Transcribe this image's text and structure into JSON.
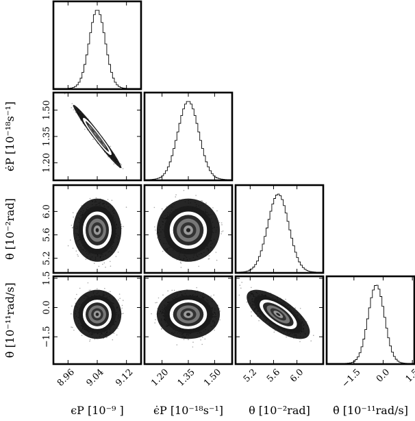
{
  "chart_data": {
    "type": "corner",
    "title": "",
    "parameters": [
      {
        "key": "eps",
        "label": "ϵP [10⁻⁹ ]",
        "range": [
          8.92,
          9.16
        ],
        "ticks": [
          8.96,
          9.04,
          9.12
        ],
        "tick_labels": [
          "8.96",
          "9.04",
          "9.12"
        ],
        "mean": 9.04,
        "sd": 0.022
      },
      {
        "key": "epsdot",
        "label": "ϵ̇P [10⁻¹⁸s⁻¹]",
        "range": [
          1.1,
          1.6
        ],
        "ticks": [
          1.2,
          1.35,
          1.5
        ],
        "tick_labels": [
          "1.20",
          "1.35",
          "1.50"
        ],
        "mean": 1.35,
        "sd": 0.06
      },
      {
        "key": "theta",
        "label": "θ [10⁻²rad]",
        "range": [
          4.95,
          6.45
        ],
        "ticks": [
          5.2,
          5.6,
          6.0
        ],
        "tick_labels": [
          "5.2",
          "5.6",
          "6.0"
        ],
        "mean": 5.68,
        "sd": 0.18
      },
      {
        "key": "thetadot",
        "label": "θ̇ [10⁻¹¹rad/s]",
        "range": [
          -2.9,
          1.6
        ],
        "ticks": [
          -1.5,
          0.0,
          1.5
        ],
        "tick_labels": [
          "−1.5",
          "0.0",
          "1.5"
        ],
        "mean": -0.35,
        "sd": 0.42
      }
    ],
    "correlations": {
      "eps-epsdot": -0.98,
      "eps-theta": 0.0,
      "epsdot-theta": 0.0,
      "eps-thetadot": 0.0,
      "epsdot-thetadot": 0.0,
      "theta-thetadot": -0.7
    },
    "panels": {
      "diagonal": "histogram",
      "off_diagonal": "density scatter with contours"
    },
    "grid": false,
    "legend": "none"
  }
}
